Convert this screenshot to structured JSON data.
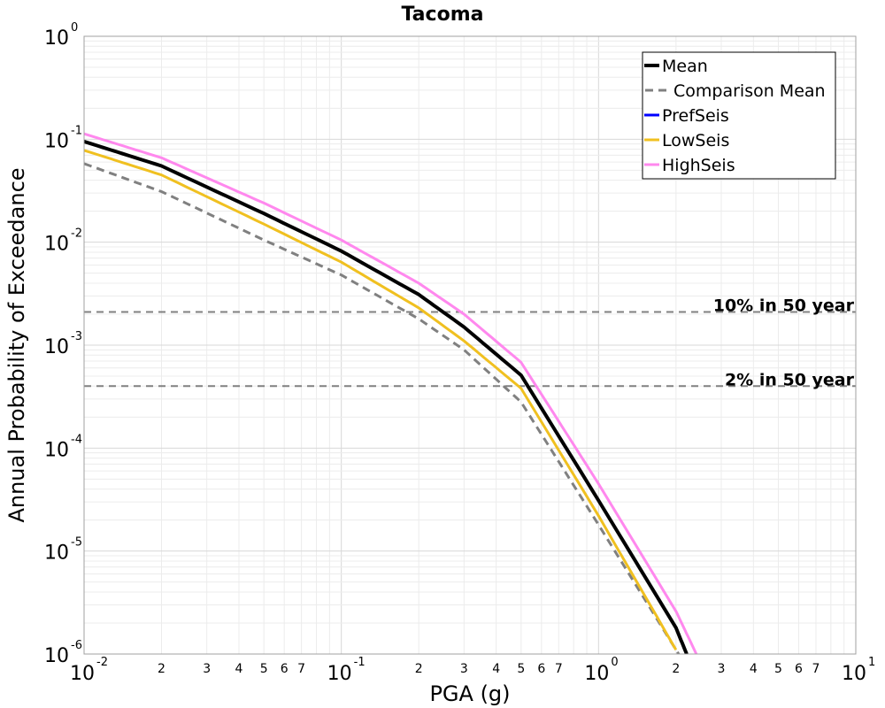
{
  "chart_data": {
    "type": "line",
    "title": "Tacoma",
    "xlabel": "PGA (g)",
    "ylabel": "Annual Probability of Exceedance",
    "xscale": "log",
    "yscale": "log",
    "xlim": [
      0.01,
      10
    ],
    "ylim": [
      1e-06,
      1
    ],
    "grid": true,
    "legend_position": "top-right",
    "x_major_ticks": [
      {
        "value": 0.01,
        "base": "10",
        "exp": "-2"
      },
      {
        "value": 0.1,
        "base": "10",
        "exp": "-1"
      },
      {
        "value": 1,
        "base": "10",
        "exp": "0"
      },
      {
        "value": 10,
        "base": "10",
        "exp": "1"
      }
    ],
    "x_minor_tick_labels": [
      "2",
      "3",
      "4",
      "5",
      "6",
      "7"
    ],
    "y_major_ticks": [
      {
        "value": 1,
        "base": "10",
        "exp": "0"
      },
      {
        "value": 0.1,
        "base": "10",
        "exp": "-1"
      },
      {
        "value": 0.01,
        "base": "10",
        "exp": "-2"
      },
      {
        "value": 0.001,
        "base": "10",
        "exp": "-3"
      },
      {
        "value": 0.0001,
        "base": "10",
        "exp": "-4"
      },
      {
        "value": 1e-05,
        "base": "10",
        "exp": "-5"
      },
      {
        "value": 1e-06,
        "base": "10",
        "exp": "-6"
      }
    ],
    "series": [
      {
        "name": "Mean",
        "color": "#000000",
        "style": "solid",
        "width": 4,
        "x": [
          0.01,
          0.02,
          0.05,
          0.1,
          0.2,
          0.3,
          0.5,
          1,
          2,
          2.2
        ],
        "y": [
          0.095,
          0.055,
          0.019,
          0.0082,
          0.0031,
          0.0015,
          0.00051,
          3.1e-05,
          1.8e-06,
          1e-06
        ]
      },
      {
        "name": "Comparison Mean",
        "color": "#808080",
        "style": "dashed",
        "width": 3,
        "x": [
          0.01,
          0.02,
          0.05,
          0.1,
          0.2,
          0.3,
          0.5,
          1,
          2,
          2.2
        ],
        "y": [
          0.058,
          0.031,
          0.0105,
          0.0048,
          0.0018,
          0.0009,
          0.00028,
          1.8e-05,
          1.1e-06,
          7.5e-07
        ]
      },
      {
        "name": "PrefSeis",
        "color": "#0000ff",
        "style": "solid",
        "width": 3,
        "x": [],
        "y": []
      },
      {
        "name": "LowSeis",
        "color": "#f0c020",
        "style": "solid",
        "width": 3,
        "x": [
          0.01,
          0.02,
          0.05,
          0.1,
          0.2,
          0.3,
          0.5,
          1,
          2
        ],
        "y": [
          0.078,
          0.045,
          0.015,
          0.0064,
          0.0023,
          0.0011,
          0.00038,
          2.2e-05,
          1.1e-06
        ]
      },
      {
        "name": "HighSeis",
        "color": "#ff88ee",
        "style": "solid",
        "width": 3,
        "x": [
          0.01,
          0.02,
          0.05,
          0.1,
          0.2,
          0.3,
          0.5,
          1,
          2,
          2.4
        ],
        "y": [
          0.113,
          0.066,
          0.024,
          0.0105,
          0.004,
          0.002,
          0.00068,
          4.5e-05,
          2.6e-06,
          1e-06
        ]
      }
    ],
    "reference_lines": [
      {
        "label": "10% in 50 year",
        "y": 0.0021,
        "color": "#808080",
        "style": "dashed"
      },
      {
        "label": "2% in 50 year",
        "y": 0.0004,
        "color": "#808080",
        "style": "dashed"
      }
    ]
  }
}
